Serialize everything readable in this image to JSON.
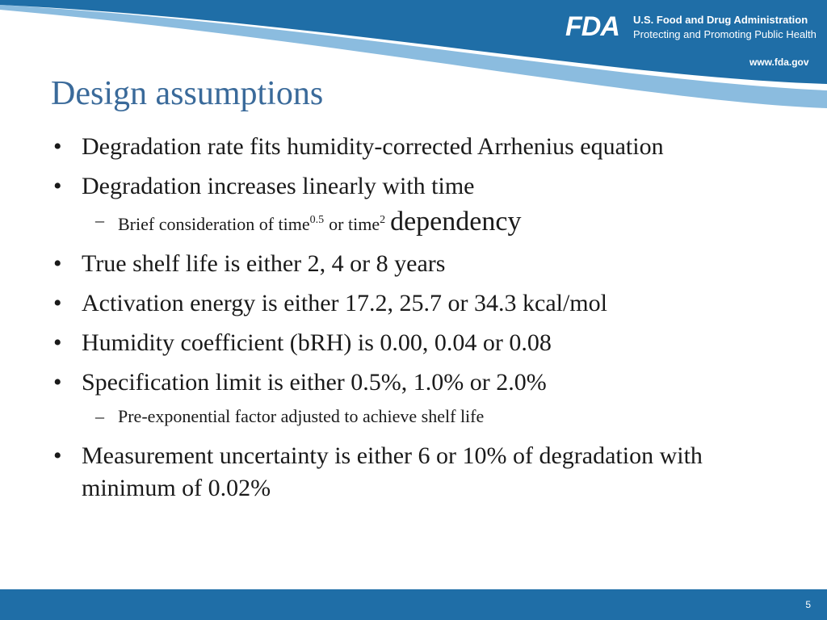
{
  "header": {
    "logo": "FDA",
    "agency": "U.S. Food and Drug Administration",
    "tagline": "Protecting and Promoting Public Health",
    "url": "www.fda.gov"
  },
  "title": "Design assumptions",
  "bullets": [
    {
      "level": 1,
      "parts": [
        "Degradation rate fits humidity-corrected Arrhenius equation"
      ]
    },
    {
      "level": 1,
      "parts": [
        "Degradation increases linearly with time"
      ]
    },
    {
      "level": 2,
      "parts": [
        "Brief consideration of time",
        "0.5",
        "or time",
        "2",
        "dependency"
      ]
    },
    {
      "level": 1,
      "parts": [
        "True shelf life is either 2, 4 or 8 years"
      ]
    },
    {
      "level": 1,
      "parts": [
        "Activation energy is either 17.2, 25.7 or 34.3 kcal/mol"
      ]
    },
    {
      "level": 1,
      "parts": [
        "Humidity coefficient (bRH) is 0.00, 0.04 or 0.08"
      ]
    },
    {
      "level": 1,
      "parts": [
        "Specification limit is either 0.5%, 1.0% or 2.0%"
      ]
    },
    {
      "level": 2,
      "parts": [
        "Pre-exponential factor adjusted to achieve shelf life"
      ]
    },
    {
      "level": 1,
      "parts": [
        "Measurement uncertainty is either 6 or 10% of degradation with minimum of 0.02%"
      ]
    }
  ],
  "footer": {
    "page": "5"
  }
}
